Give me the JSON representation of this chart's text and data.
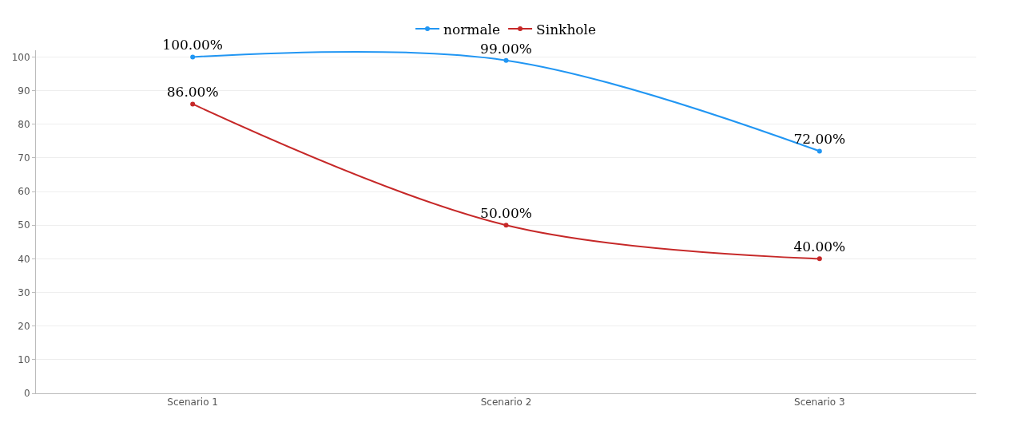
{
  "chart_data": {
    "type": "line",
    "categories": [
      "Scenario 1",
      "Scenario 2",
      "Scenario 3"
    ],
    "series": [
      {
        "name": "normale",
        "color": "#2196f3",
        "values": [
          100,
          99,
          72
        ],
        "value_labels": [
          "100.00%",
          "99.00%",
          "72.00%"
        ]
      },
      {
        "name": "Sinkhole",
        "color": "#c62828",
        "values": [
          86,
          50,
          40
        ],
        "value_labels": [
          "86.00%",
          "50.00%",
          "40.00%"
        ]
      }
    ],
    "ylim": [
      0,
      102
    ],
    "yticks": [
      0,
      10,
      20,
      30,
      40,
      50,
      60,
      70,
      80,
      90,
      100
    ],
    "grid": "y",
    "legend": "top",
    "marker": "circle",
    "line_style": "solid"
  }
}
